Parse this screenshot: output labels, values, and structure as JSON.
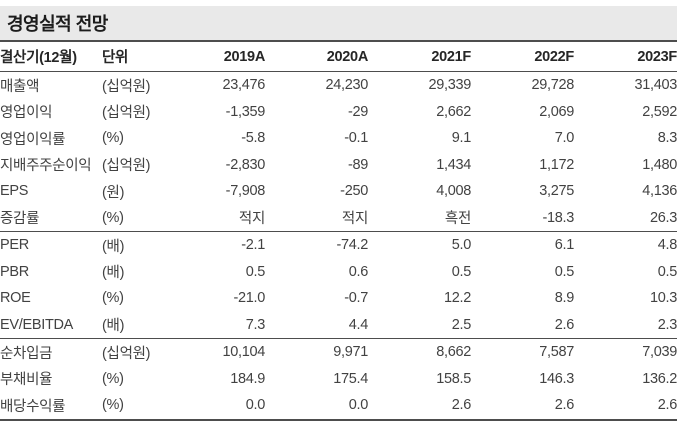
{
  "title": "경영실적 전망",
  "table": {
    "headers": [
      "결산기(12월)",
      "단위",
      "2019A",
      "2020A",
      "2021F",
      "2022F",
      "2023F"
    ],
    "rows": [
      {
        "label": "매출액",
        "unit": "(십억원)",
        "values": [
          "23,476",
          "24,230",
          "29,339",
          "29,728",
          "31,403"
        ],
        "divider_after": false
      },
      {
        "label": "영업이익",
        "unit": "(십억원)",
        "values": [
          "-1,359",
          "-29",
          "2,662",
          "2,069",
          "2,592"
        ],
        "divider_after": false
      },
      {
        "label": "영업이익률",
        "unit": "(%)",
        "values": [
          "-5.8",
          "-0.1",
          "9.1",
          "7.0",
          "8.3"
        ],
        "divider_after": false
      },
      {
        "label": "지배주주순이익",
        "unit": "(십억원)",
        "values": [
          "-2,830",
          "-89",
          "1,434",
          "1,172",
          "1,480"
        ],
        "divider_after": false
      },
      {
        "label": "EPS",
        "unit": "(원)",
        "values": [
          "-7,908",
          "-250",
          "4,008",
          "3,275",
          "4,136"
        ],
        "divider_after": false
      },
      {
        "label": "증감률",
        "unit": "(%)",
        "values": [
          "적지",
          "적지",
          "흑전",
          "-18.3",
          "26.3"
        ],
        "divider_after": true
      },
      {
        "label": "PER",
        "unit": "(배)",
        "values": [
          "-2.1",
          "-74.2",
          "5.0",
          "6.1",
          "4.8"
        ],
        "divider_after": false
      },
      {
        "label": "PBR",
        "unit": "(배)",
        "values": [
          "0.5",
          "0.6",
          "0.5",
          "0.5",
          "0.5"
        ],
        "divider_after": false
      },
      {
        "label": "ROE",
        "unit": "(%)",
        "values": [
          "-21.0",
          "-0.7",
          "12.2",
          "8.9",
          "10.3"
        ],
        "divider_after": false
      },
      {
        "label": "EV/EBITDA",
        "unit": "(배)",
        "values": [
          "7.3",
          "4.4",
          "2.5",
          "2.6",
          "2.3"
        ],
        "divider_after": true
      },
      {
        "label": "순차입금",
        "unit": "(십억원)",
        "values": [
          "10,104",
          "9,971",
          "8,662",
          "7,587",
          "7,039"
        ],
        "divider_after": false
      },
      {
        "label": "부채비율",
        "unit": "(%)",
        "values": [
          "184.9",
          "175.4",
          "158.5",
          "146.3",
          "136.2"
        ],
        "divider_after": false
      },
      {
        "label": "배당수익률",
        "unit": "(%)",
        "values": [
          "0.0",
          "0.0",
          "2.6",
          "2.6",
          "2.6"
        ],
        "divider_after": false
      }
    ]
  },
  "colors": {
    "title_band_bg": "#e9e9e9",
    "rule": "#4d4d4d",
    "title_text": "#1c1c1c",
    "header_text": "#262626",
    "body_text": "#424242"
  }
}
